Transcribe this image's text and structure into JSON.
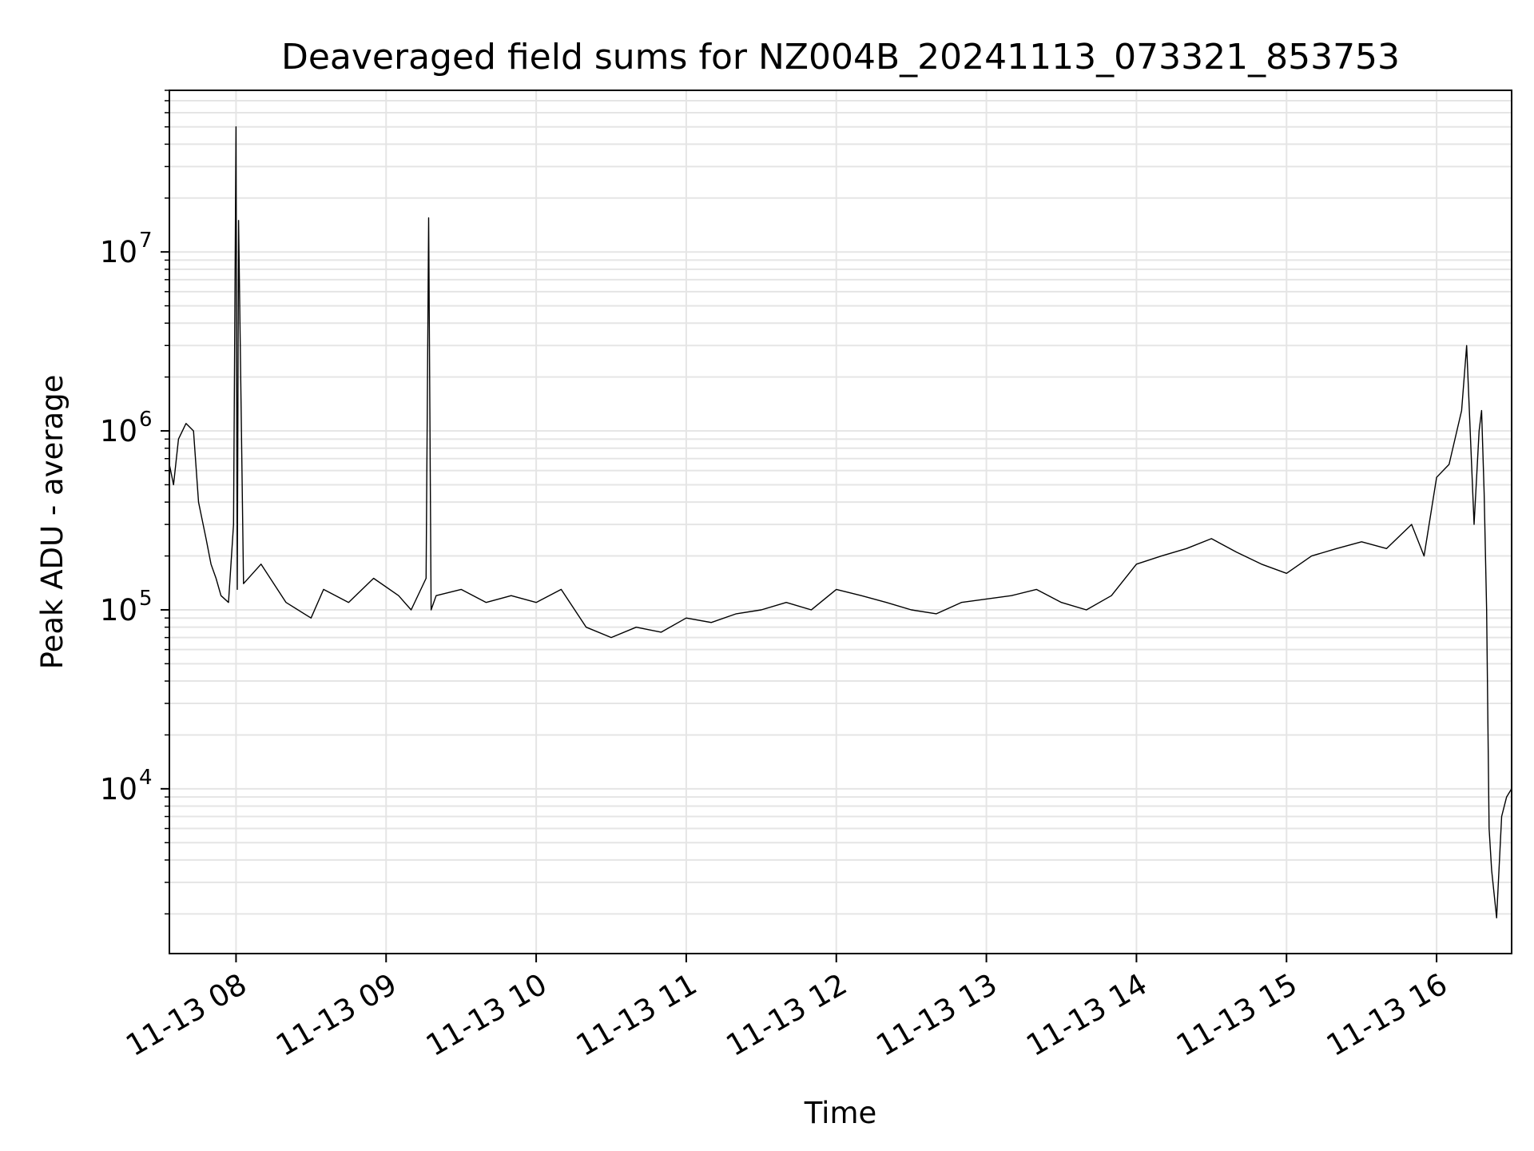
{
  "chart_data": {
    "type": "line",
    "title": "Deaveraged field sums for NZ004B_20241113_073321_853753",
    "xlabel": "Time",
    "ylabel": "Peak ADU - average",
    "x_scale": "time",
    "y_scale": "log",
    "xlim": [
      "2024-11-13T07:33:21",
      "2024-11-13T16:30:00"
    ],
    "ylim": [
      1200,
      80000000
    ],
    "grid": true,
    "x_tick_labels": [
      "11-13 08",
      "11-13 09",
      "11-13 10",
      "11-13 11",
      "11-13 12",
      "11-13 13",
      "11-13 14",
      "11-13 15",
      "11-13 16"
    ],
    "x_ticks": [
      "2024-11-13T08:00",
      "2024-11-13T09:00",
      "2024-11-13T10:00",
      "2024-11-13T11:00",
      "2024-11-13T12:00",
      "2024-11-13T13:00",
      "2024-11-13T14:00",
      "2024-11-13T15:00",
      "2024-11-13T16:00"
    ],
    "y_ticks": [
      {
        "value": 10000,
        "base": "10",
        "exp": "4"
      },
      {
        "value": 100000,
        "base": "10",
        "exp": "5"
      },
      {
        "value": 1000000,
        "base": "10",
        "exp": "6"
      },
      {
        "value": 10000000,
        "base": "10",
        "exp": "7"
      }
    ],
    "line_color": "#000000",
    "grid_color": "#e5e5e5",
    "series": [
      {
        "x": [
          "2024-11-13T07:33",
          "2024-11-13T07:35",
          "2024-11-13T07:37",
          "2024-11-13T07:40",
          "2024-11-13T07:43",
          "2024-11-13T07:45",
          "2024-11-13T07:48",
          "2024-11-13T07:50",
          "2024-11-13T07:52",
          "2024-11-13T07:54",
          "2024-11-13T07:57",
          "2024-11-13T07:59",
          "2024-11-13T08:00",
          "2024-11-13T08:00:30",
          "2024-11-13T08:01",
          "2024-11-13T08:03",
          "2024-11-13T08:10",
          "2024-11-13T08:20",
          "2024-11-13T08:30",
          "2024-11-13T08:35",
          "2024-11-13T08:45",
          "2024-11-13T08:55",
          "2024-11-13T09:05",
          "2024-11-13T09:10",
          "2024-11-13T09:16",
          "2024-11-13T09:17",
          "2024-11-13T09:18",
          "2024-11-13T09:20",
          "2024-11-13T09:30",
          "2024-11-13T09:40",
          "2024-11-13T09:50",
          "2024-11-13T10:00",
          "2024-11-13T10:10",
          "2024-11-13T10:20",
          "2024-11-13T10:30",
          "2024-11-13T10:40",
          "2024-11-13T10:50",
          "2024-11-13T11:00",
          "2024-11-13T11:10",
          "2024-11-13T11:20",
          "2024-11-13T11:30",
          "2024-11-13T11:40",
          "2024-11-13T11:50",
          "2024-11-13T12:00",
          "2024-11-13T12:10",
          "2024-11-13T12:20",
          "2024-11-13T12:30",
          "2024-11-13T12:40",
          "2024-11-13T12:50",
          "2024-11-13T13:00",
          "2024-11-13T13:10",
          "2024-11-13T13:20",
          "2024-11-13T13:30",
          "2024-11-13T13:40",
          "2024-11-13T13:50",
          "2024-11-13T14:00",
          "2024-11-13T14:10",
          "2024-11-13T14:20",
          "2024-11-13T14:30",
          "2024-11-13T14:40",
          "2024-11-13T14:50",
          "2024-11-13T15:00",
          "2024-11-13T15:10",
          "2024-11-13T15:20",
          "2024-11-13T15:30",
          "2024-11-13T15:40",
          "2024-11-13T15:50",
          "2024-11-13T15:55",
          "2024-11-13T16:00",
          "2024-11-13T16:05",
          "2024-11-13T16:10",
          "2024-11-13T16:12",
          "2024-11-13T16:15",
          "2024-11-13T16:17",
          "2024-11-13T16:18",
          "2024-11-13T16:19",
          "2024-11-13T16:20",
          "2024-11-13T16:21",
          "2024-11-13T16:22",
          "2024-11-13T16:24",
          "2024-11-13T16:26",
          "2024-11-13T16:28",
          "2024-11-13T16:30"
        ],
        "y": [
          650000,
          500000,
          900000,
          1100000,
          1000000,
          400000,
          250000,
          180000,
          150000,
          120000,
          110000,
          300000,
          50000000,
          130000,
          15000000,
          140000,
          180000,
          110000,
          90000,
          130000,
          110000,
          150000,
          120000,
          100000,
          150000,
          15500000,
          100000,
          120000,
          130000,
          110000,
          120000,
          110000,
          130000,
          80000,
          70000,
          80000,
          75000,
          90000,
          85000,
          95000,
          100000,
          110000,
          100000,
          130000,
          120000,
          110000,
          100000,
          95000,
          110000,
          115000,
          120000,
          130000,
          110000,
          100000,
          120000,
          180000,
          200000,
          220000,
          250000,
          210000,
          180000,
          160000,
          200000,
          220000,
          240000,
          220000,
          300000,
          200000,
          550000,
          650000,
          1300000,
          3000000,
          300000,
          1000000,
          1300000,
          450000,
          100000,
          6000,
          3500,
          1900,
          7000,
          9000,
          10000
        ]
      }
    ]
  }
}
